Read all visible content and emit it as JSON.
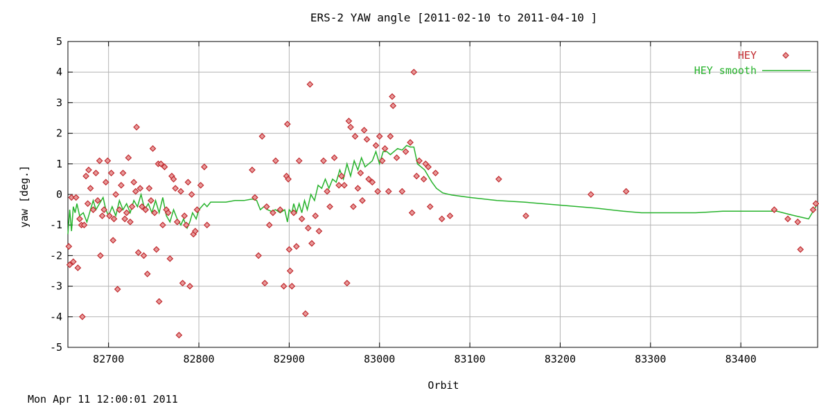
{
  "footer_timestamp": "Mon Apr 11 12:00:01 2011",
  "chart_data": {
    "type": "scatter",
    "title": "ERS-2 YAW angle [2011-02-10 to 2011-04-10 ]",
    "xlabel": "Orbit",
    "ylabel": "yaw [deg.]",
    "xlim": [
      82655,
      83485
    ],
    "ylim": [
      -5,
      5
    ],
    "xticks": [
      82700,
      82800,
      82900,
      83000,
      83100,
      83200,
      83300,
      83400
    ],
    "yticks": [
      -5,
      -4,
      -3,
      -2,
      -1,
      0,
      1,
      2,
      3,
      4,
      5
    ],
    "grid": true,
    "legend_position": "top-right",
    "colors": {
      "points": "#c0282d",
      "smooth": "#25b22a",
      "grid": "#b4b4b4"
    },
    "series": [
      {
        "name": "HEY",
        "kind": "points",
        "points": [
          [
            82656,
            -1.7
          ],
          [
            82657,
            -2.3
          ],
          [
            82659,
            -0.1
          ],
          [
            82661,
            -2.2
          ],
          [
            82664,
            -0.1
          ],
          [
            82666,
            -2.4
          ],
          [
            82668,
            -0.8
          ],
          [
            82670,
            -1.0
          ],
          [
            82671,
            -4.0
          ],
          [
            82673,
            -1.0
          ],
          [
            82675,
            0.6
          ],
          [
            82677,
            -0.3
          ],
          [
            82678,
            0.8
          ],
          [
            82680,
            0.2
          ],
          [
            82683,
            -0.5
          ],
          [
            82686,
            0.7
          ],
          [
            82688,
            -0.2
          ],
          [
            82690,
            1.1
          ],
          [
            82691,
            -2.0
          ],
          [
            82693,
            -0.7
          ],
          [
            82695,
            -0.5
          ],
          [
            82697,
            0.4
          ],
          [
            82699,
            1.1
          ],
          [
            82701,
            -0.7
          ],
          [
            82703,
            0.7
          ],
          [
            82705,
            -1.5
          ],
          [
            82706,
            -0.8
          ],
          [
            82708,
            0.0
          ],
          [
            82710,
            -3.1
          ],
          [
            82712,
            -0.5
          ],
          [
            82714,
            0.3
          ],
          [
            82716,
            0.7
          ],
          [
            82718,
            -0.8
          ],
          [
            82720,
            -0.6
          ],
          [
            82722,
            1.2
          ],
          [
            82724,
            -0.9
          ],
          [
            82726,
            -0.4
          ],
          [
            82728,
            0.4
          ],
          [
            82730,
            0.1
          ],
          [
            82731,
            2.2
          ],
          [
            82733,
            -1.9
          ],
          [
            82735,
            0.2
          ],
          [
            82737,
            -0.4
          ],
          [
            82739,
            -2.0
          ],
          [
            82741,
            -0.5
          ],
          [
            82743,
            -2.6
          ],
          [
            82745,
            0.2
          ],
          [
            82747,
            -0.2
          ],
          [
            82749,
            1.5
          ],
          [
            82751,
            -0.6
          ],
          [
            82753,
            -1.8
          ],
          [
            82755,
            1.0
          ],
          [
            82756,
            -3.5
          ],
          [
            82758,
            1.0
          ],
          [
            82760,
            -1.0
          ],
          [
            82762,
            0.9
          ],
          [
            82764,
            -0.5
          ],
          [
            82766,
            -0.6
          ],
          [
            82768,
            -2.1
          ],
          [
            82770,
            0.6
          ],
          [
            82772,
            0.5
          ],
          [
            82774,
            0.2
          ],
          [
            82776,
            -0.9
          ],
          [
            82778,
            -4.6
          ],
          [
            82780,
            0.1
          ],
          [
            82782,
            -2.9
          ],
          [
            82784,
            -0.7
          ],
          [
            82786,
            -1.0
          ],
          [
            82788,
            0.4
          ],
          [
            82790,
            -3.0
          ],
          [
            82792,
            0.0
          ],
          [
            82794,
            -1.3
          ],
          [
            82796,
            -1.2
          ],
          [
            82798,
            -0.5
          ],
          [
            82802,
            0.3
          ],
          [
            82806,
            0.9
          ],
          [
            82809,
            -1.0
          ],
          [
            82859,
            0.8
          ],
          [
            82862,
            -0.1
          ],
          [
            82866,
            -2.0
          ],
          [
            82870,
            1.9
          ],
          [
            82873,
            -2.9
          ],
          [
            82875,
            -0.4
          ],
          [
            82878,
            -1.0
          ],
          [
            82882,
            -0.6
          ],
          [
            82885,
            1.1
          ],
          [
            82890,
            -0.5
          ],
          [
            82894,
            -3.0
          ],
          [
            82897,
            0.6
          ],
          [
            82898,
            2.3
          ],
          [
            82899,
            0.5
          ],
          [
            82900,
            -1.8
          ],
          [
            82901,
            -2.5
          ],
          [
            82903,
            -3.0
          ],
          [
            82905,
            -0.6
          ],
          [
            82908,
            -1.7
          ],
          [
            82911,
            1.1
          ],
          [
            82914,
            -0.8
          ],
          [
            82918,
            -3.9
          ],
          [
            82921,
            -1.1
          ],
          [
            82923,
            3.6
          ],
          [
            82925,
            -1.6
          ],
          [
            82929,
            -0.7
          ],
          [
            82933,
            -1.2
          ],
          [
            82938,
            1.1
          ],
          [
            82942,
            0.1
          ],
          [
            82945,
            -0.4
          ],
          [
            82950,
            1.2
          ],
          [
            82955,
            0.3
          ],
          [
            82958,
            0.6
          ],
          [
            82961,
            0.3
          ],
          [
            82964,
            -2.9
          ],
          [
            82966,
            2.4
          ],
          [
            82968,
            2.2
          ],
          [
            82971,
            -0.4
          ],
          [
            82973,
            1.9
          ],
          [
            82976,
            0.2
          ],
          [
            82979,
            0.7
          ],
          [
            82981,
            -0.2
          ],
          [
            82983,
            2.1
          ],
          [
            82986,
            1.8
          ],
          [
            82988,
            0.5
          ],
          [
            82992,
            0.4
          ],
          [
            82996,
            1.6
          ],
          [
            82998,
            0.1
          ],
          [
            83000,
            1.9
          ],
          [
            83003,
            1.1
          ],
          [
            83006,
            1.5
          ],
          [
            83010,
            0.1
          ],
          [
            83012,
            1.9
          ],
          [
            83014,
            3.2
          ],
          [
            83015,
            2.9
          ],
          [
            83019,
            1.2
          ],
          [
            83025,
            0.1
          ],
          [
            83029,
            1.4
          ],
          [
            83034,
            1.7
          ],
          [
            83036,
            -0.6
          ],
          [
            83038,
            4.0
          ],
          [
            83041,
            0.6
          ],
          [
            83044,
            1.1
          ],
          [
            83049,
            0.5
          ],
          [
            83051,
            1.0
          ],
          [
            83054,
            0.9
          ],
          [
            83056,
            -0.4
          ],
          [
            83062,
            0.7
          ],
          [
            83069,
            -0.8
          ],
          [
            83078,
            -0.7
          ],
          [
            83132,
            0.5
          ],
          [
            83162,
            -0.7
          ],
          [
            83234,
            0.0
          ],
          [
            83273,
            0.1
          ],
          [
            83437,
            -0.5
          ],
          [
            83452,
            -0.8
          ],
          [
            83463,
            -0.9
          ],
          [
            83466,
            -1.8
          ],
          [
            83480,
            -0.5
          ],
          [
            83483,
            -0.3
          ]
        ]
      },
      {
        "name": "HEY smooth",
        "kind": "line",
        "points": [
          [
            82655,
            -1.3
          ],
          [
            82657,
            -0.5
          ],
          [
            82659,
            -1.2
          ],
          [
            82661,
            -0.4
          ],
          [
            82663,
            -0.6
          ],
          [
            82665,
            -0.3
          ],
          [
            82668,
            -0.7
          ],
          [
            82672,
            -0.6
          ],
          [
            82676,
            -0.9
          ],
          [
            82680,
            -0.5
          ],
          [
            82683,
            -0.2
          ],
          [
            82686,
            -0.5
          ],
          [
            82690,
            -0.3
          ],
          [
            82694,
            -0.1
          ],
          [
            82697,
            -0.5
          ],
          [
            82700,
            -0.7
          ],
          [
            82704,
            -0.4
          ],
          [
            82708,
            -0.7
          ],
          [
            82712,
            -0.2
          ],
          [
            82716,
            -0.5
          ],
          [
            82720,
            -0.3
          ],
          [
            82724,
            -0.6
          ],
          [
            82728,
            -0.2
          ],
          [
            82732,
            -0.4
          ],
          [
            82736,
            0.0
          ],
          [
            82740,
            -0.5
          ],
          [
            82744,
            -0.3
          ],
          [
            82748,
            -0.6
          ],
          [
            82752,
            -0.2
          ],
          [
            82756,
            -0.6
          ],
          [
            82760,
            -0.1
          ],
          [
            82764,
            -0.7
          ],
          [
            82768,
            -0.9
          ],
          [
            82772,
            -0.5
          ],
          [
            82776,
            -0.8
          ],
          [
            82780,
            -1.0
          ],
          [
            82783,
            -0.8
          ],
          [
            82787,
            -1.1
          ],
          [
            82790,
            -0.9
          ],
          [
            82793,
            -0.6
          ],
          [
            82797,
            -0.8
          ],
          [
            82800,
            -0.5
          ],
          [
            82803,
            -0.4
          ],
          [
            82806,
            -0.3
          ],
          [
            82809,
            -0.4
          ],
          [
            82813,
            -0.25
          ],
          [
            82820,
            -0.25
          ],
          [
            82830,
            -0.25
          ],
          [
            82840,
            -0.2
          ],
          [
            82850,
            -0.2
          ],
          [
            82859,
            -0.15
          ],
          [
            82864,
            -0.2
          ],
          [
            82868,
            -0.5
          ],
          [
            82872,
            -0.4
          ],
          [
            82876,
            -0.5
          ],
          [
            82880,
            -0.55
          ],
          [
            82885,
            -0.5
          ],
          [
            82890,
            -0.6
          ],
          [
            82895,
            -0.5
          ],
          [
            82898,
            -0.9
          ],
          [
            82900,
            -0.5
          ],
          [
            82903,
            -0.6
          ],
          [
            82905,
            -0.3
          ],
          [
            82908,
            -0.6
          ],
          [
            82911,
            -0.3
          ],
          [
            82914,
            -0.6
          ],
          [
            82917,
            -0.2
          ],
          [
            82920,
            -0.5
          ],
          [
            82924,
            0.0
          ],
          [
            82928,
            -0.2
          ],
          [
            82932,
            0.3
          ],
          [
            82936,
            0.2
          ],
          [
            82940,
            0.5
          ],
          [
            82944,
            0.2
          ],
          [
            82948,
            0.5
          ],
          [
            82952,
            0.4
          ],
          [
            82956,
            0.8
          ],
          [
            82960,
            0.5
          ],
          [
            82964,
            1.0
          ],
          [
            82968,
            0.6
          ],
          [
            82972,
            1.1
          ],
          [
            82976,
            0.8
          ],
          [
            82980,
            1.2
          ],
          [
            82984,
            0.9
          ],
          [
            82988,
            1.0
          ],
          [
            82992,
            1.1
          ],
          [
            82996,
            1.4
          ],
          [
            83000,
            1.0
          ],
          [
            83004,
            1.4
          ],
          [
            83008,
            1.4
          ],
          [
            83012,
            1.3
          ],
          [
            83016,
            1.4
          ],
          [
            83020,
            1.5
          ],
          [
            83025,
            1.45
          ],
          [
            83030,
            1.6
          ],
          [
            83034,
            1.55
          ],
          [
            83038,
            1.55
          ],
          [
            83042,
            1.0
          ],
          [
            83046,
            0.9
          ],
          [
            83050,
            0.8
          ],
          [
            83054,
            0.6
          ],
          [
            83058,
            0.4
          ],
          [
            83063,
            0.2
          ],
          [
            83070,
            0.05
          ],
          [
            83080,
            -0.02
          ],
          [
            83100,
            -0.1
          ],
          [
            83130,
            -0.2
          ],
          [
            83160,
            -0.25
          ],
          [
            83200,
            -0.35
          ],
          [
            83240,
            -0.45
          ],
          [
            83270,
            -0.55
          ],
          [
            83290,
            -0.6
          ],
          [
            83320,
            -0.6
          ],
          [
            83350,
            -0.6
          ],
          [
            83380,
            -0.55
          ],
          [
            83410,
            -0.55
          ],
          [
            83440,
            -0.55
          ],
          [
            83460,
            -0.7
          ],
          [
            83475,
            -0.8
          ],
          [
            83485,
            -0.3
          ]
        ]
      }
    ]
  }
}
